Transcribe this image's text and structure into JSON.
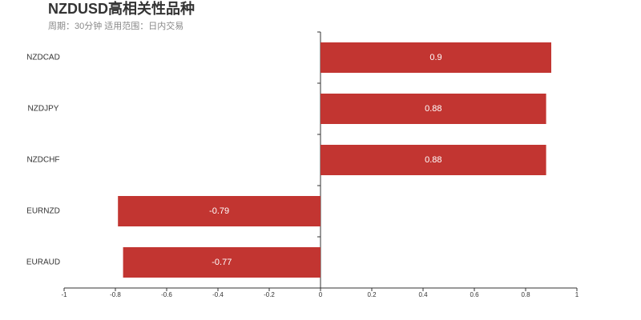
{
  "chart_data": {
    "type": "bar",
    "orientation": "horizontal",
    "title": "NZDUSD高相关性品种",
    "subtitle": "周期：30分钟 适用范围：日内交易",
    "categories": [
      "NZDCAD",
      "NZDJPY",
      "NZDCHF",
      "EURNZD",
      "EURAUD"
    ],
    "values": [
      0.9,
      0.88,
      0.88,
      -0.79,
      -0.77
    ],
    "color": "#c23531",
    "xlim": [
      -1,
      1
    ],
    "xticks": [
      -1,
      -0.8,
      -0.6,
      -0.4,
      -0.2,
      0,
      0.2,
      0.4,
      0.6,
      0.8,
      1
    ],
    "grid": false
  }
}
